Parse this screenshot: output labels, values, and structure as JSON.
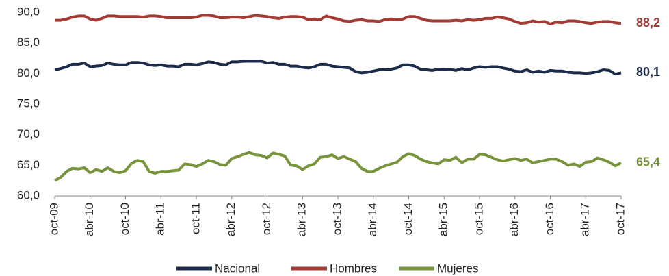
{
  "chart_data": {
    "type": "line",
    "categories": [
      "oct-09",
      null,
      null,
      null,
      null,
      null,
      "abr-10",
      null,
      null,
      null,
      null,
      null,
      "oct-10",
      null,
      null,
      null,
      null,
      null,
      "abr-11",
      null,
      null,
      null,
      null,
      null,
      "oct-11",
      null,
      null,
      null,
      null,
      null,
      "abr-12",
      null,
      null,
      null,
      null,
      null,
      "oct-12",
      null,
      null,
      null,
      null,
      null,
      "abr-13",
      null,
      null,
      null,
      null,
      null,
      "oct-13",
      null,
      null,
      null,
      null,
      null,
      "abr-14",
      null,
      null,
      null,
      null,
      null,
      "oct-14",
      null,
      null,
      null,
      null,
      null,
      "abr-15",
      null,
      null,
      null,
      null,
      null,
      "oct-15",
      null,
      null,
      null,
      null,
      null,
      "abr-16",
      null,
      null,
      null,
      null,
      null,
      "oct-16",
      null,
      null,
      null,
      null,
      null,
      "abr-17",
      null,
      null,
      null,
      null,
      null,
      "oct-17"
    ],
    "series": [
      {
        "name": "Nacional",
        "color": "#1c2b4a",
        "end_label": "80,1",
        "values": [
          80.6,
          80.8,
          81.1,
          81.5,
          81.5,
          81.7,
          81.1,
          81.2,
          81.3,
          81.7,
          81.5,
          81.4,
          81.4,
          81.8,
          81.8,
          81.7,
          81.4,
          81.3,
          81.4,
          81.2,
          81.2,
          81.1,
          81.5,
          81.5,
          81.4,
          81.6,
          81.9,
          81.8,
          81.5,
          81.4,
          81.9,
          81.9,
          82.0,
          82.0,
          82.0,
          82.0,
          81.7,
          81.8,
          81.5,
          81.5,
          81.2,
          81.2,
          81.0,
          80.9,
          81.1,
          81.5,
          81.5,
          81.2,
          81.1,
          81.0,
          80.9,
          80.3,
          80.1,
          80.2,
          80.4,
          80.6,
          80.6,
          80.7,
          80.9,
          81.4,
          81.4,
          81.2,
          80.7,
          80.6,
          80.5,
          80.7,
          80.6,
          80.7,
          80.5,
          80.8,
          80.6,
          80.9,
          81.1,
          81.0,
          81.1,
          81.1,
          80.9,
          80.7,
          80.4,
          80.3,
          80.6,
          80.2,
          80.4,
          80.2,
          80.5,
          80.4,
          80.4,
          80.2,
          80.1,
          80.1,
          80.0,
          80.1,
          80.3,
          80.6,
          80.5,
          79.9,
          80.1
        ]
      },
      {
        "name": "Hombres",
        "color": "#a33b35",
        "end_label": "88,2",
        "values": [
          88.7,
          88.7,
          88.9,
          89.2,
          89.4,
          89.4,
          88.9,
          88.7,
          89.0,
          89.4,
          89.4,
          89.3,
          89.3,
          89.3,
          89.3,
          89.2,
          89.4,
          89.4,
          89.3,
          89.1,
          89.1,
          89.1,
          89.1,
          89.1,
          89.2,
          89.5,
          89.5,
          89.4,
          89.1,
          89.1,
          89.2,
          89.2,
          89.1,
          89.3,
          89.5,
          89.4,
          89.3,
          89.1,
          89.0,
          89.2,
          89.3,
          89.3,
          89.2,
          88.8,
          88.9,
          88.8,
          89.4,
          89.1,
          88.9,
          88.6,
          88.5,
          88.7,
          88.8,
          88.6,
          88.6,
          88.5,
          88.8,
          88.9,
          88.8,
          88.9,
          89.3,
          89.3,
          89.0,
          88.7,
          88.6,
          88.6,
          88.6,
          88.6,
          88.7,
          88.6,
          88.8,
          88.7,
          88.8,
          89.0,
          89.0,
          89.2,
          89.1,
          88.9,
          88.5,
          88.2,
          88.3,
          88.6,
          88.4,
          88.5,
          88.1,
          88.4,
          88.3,
          88.6,
          88.6,
          88.5,
          88.3,
          88.2,
          88.4,
          88.5,
          88.5,
          88.3,
          88.2
        ]
      },
      {
        "name": "Mujeres",
        "color": "#77933c",
        "end_label": "65,4",
        "values": [
          62.5,
          63.0,
          64.0,
          64.5,
          64.4,
          64.6,
          63.8,
          64.3,
          64.0,
          64.6,
          64.0,
          63.8,
          64.1,
          65.3,
          65.8,
          65.6,
          64.0,
          63.7,
          64.0,
          64.0,
          64.1,
          64.2,
          65.2,
          65.1,
          64.8,
          65.2,
          65.8,
          65.6,
          65.1,
          65.0,
          66.1,
          66.4,
          66.8,
          67.1,
          66.7,
          66.6,
          66.2,
          67.0,
          66.8,
          66.5,
          65.0,
          64.9,
          64.3,
          64.9,
          65.2,
          66.3,
          66.4,
          66.7,
          66.1,
          66.4,
          66.0,
          65.6,
          64.5,
          64.0,
          64.0,
          64.5,
          64.9,
          65.2,
          65.5,
          66.4,
          66.9,
          66.6,
          66.0,
          65.6,
          65.4,
          65.2,
          65.9,
          65.8,
          66.3,
          65.4,
          66.0,
          66.0,
          66.8,
          66.7,
          66.3,
          65.9,
          65.7,
          65.9,
          66.1,
          65.8,
          66.0,
          65.4,
          65.6,
          65.8,
          66.0,
          66.0,
          65.6,
          65.0,
          65.2,
          64.8,
          65.5,
          65.6,
          66.2,
          65.9,
          65.5,
          64.9,
          65.4
        ]
      }
    ],
    "ylim": [
      60,
      90
    ],
    "yticks": [
      {
        "value": 60,
        "label": "60,0"
      },
      {
        "value": 65,
        "label": "65,0"
      },
      {
        "value": 70,
        "label": "70,0"
      },
      {
        "value": 75,
        "label": "75,0"
      },
      {
        "value": 80,
        "label": "80,0"
      },
      {
        "value": 85,
        "label": "85,0"
      },
      {
        "value": 90,
        "label": "90,0"
      }
    ],
    "legend": "bottom"
  }
}
